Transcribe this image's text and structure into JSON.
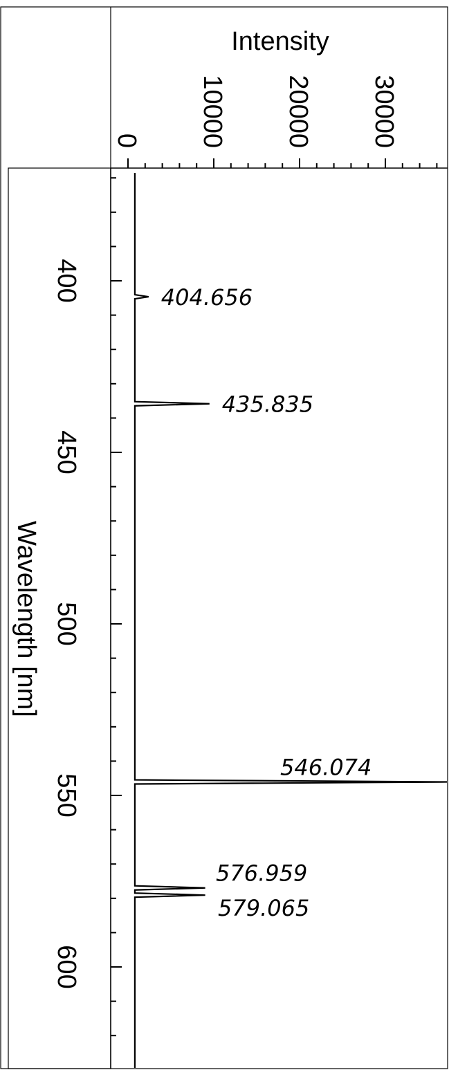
{
  "chart_data": {
    "type": "line",
    "orientation": "wavelength-vertical",
    "xlabel": "Intensity",
    "ylabel": "Wavelength [nm]",
    "xlim": [
      -2000,
      39000
    ],
    "ylim": [
      370,
      630
    ],
    "x_ticks": [
      0,
      10000,
      20000,
      30000
    ],
    "x_tick_labels": [
      "0",
      "10000",
      "20000",
      "30000"
    ],
    "y_ticks": [
      400,
      450,
      500,
      550,
      600
    ],
    "y_tick_labels": [
      "400",
      "450",
      "500",
      "550",
      "600"
    ],
    "grid": false,
    "legend": "none",
    "line_color": "#000000",
    "baseline": 800,
    "peaks": [
      {
        "wavelength": 404.656,
        "intensity": 2400,
        "label": "404.656"
      },
      {
        "wavelength": 435.835,
        "intensity": 9500,
        "label": "435.835"
      },
      {
        "wavelength": 546.074,
        "intensity": 38000,
        "label": "546.074"
      },
      {
        "wavelength": 576.959,
        "intensity": 9000,
        "label": "576.959"
      },
      {
        "wavelength": 579.065,
        "intensity": 9000,
        "label": "579.065"
      }
    ]
  }
}
